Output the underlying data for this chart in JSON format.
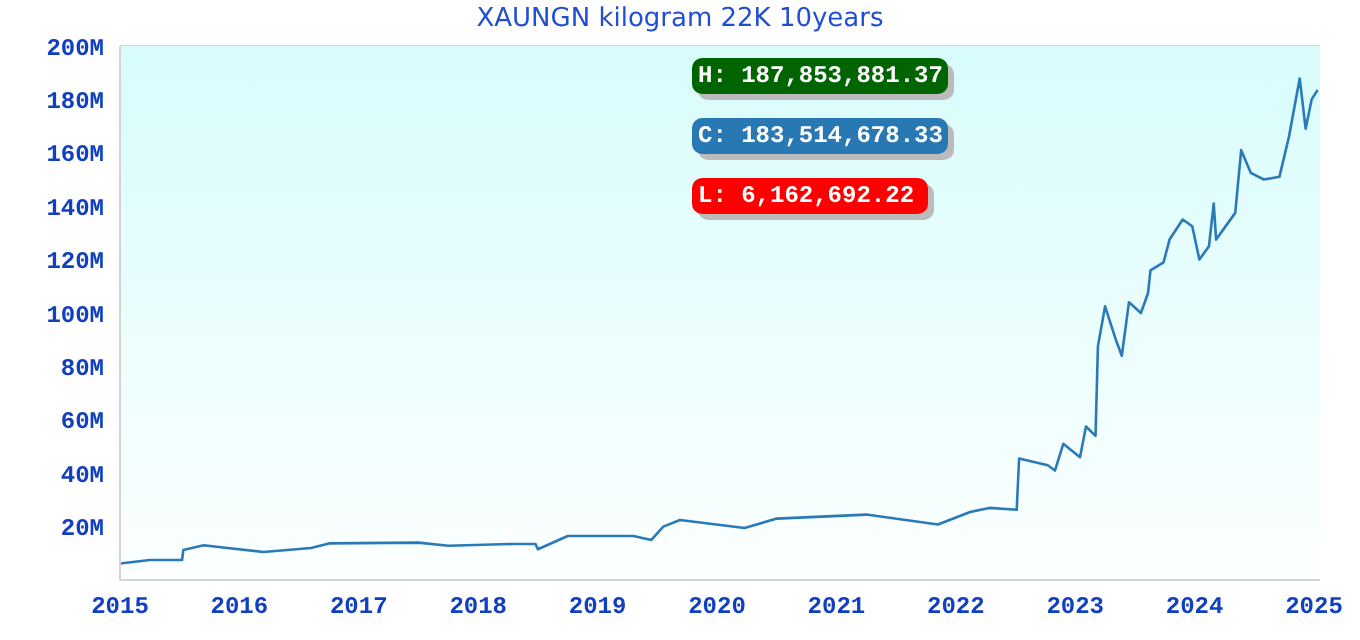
{
  "chart_data": {
    "type": "line",
    "title": "XAUNGN kilogram 22K 10years",
    "annotations": [
      "H: 187,853,881.37",
      "C: 183,514,678.33",
      "L: 6,162,692.22"
    ],
    "series": [
      {
        "color": "#2a7ab8",
        "x": [
          2015.0,
          2015.25,
          2015.52,
          2015.53,
          2015.7,
          2015.9,
          2016.2,
          2016.6,
          2016.75,
          2017.5,
          2017.75,
          2018.3,
          2018.48,
          2018.5,
          2018.75,
          2019.3,
          2019.45,
          2019.55,
          2019.69,
          2020.23,
          2020.5,
          2021.25,
          2021.85,
          2022.12,
          2022.28,
          2022.51,
          2022.53,
          2022.77,
          2022.83,
          2022.9,
          2023.04,
          2023.09,
          2023.17,
          2023.19,
          2023.25,
          2023.34,
          2023.39,
          2023.45,
          2023.55,
          2023.61,
          2023.63,
          2023.74,
          2023.79,
          2023.9,
          2023.98,
          2024.04,
          2024.12,
          2024.16,
          2024.18,
          2024.34,
          2024.39,
          2024.47,
          2024.58,
          2024.71,
          2024.79,
          2024.88,
          2024.93,
          2024.98,
          2025.03
        ],
        "values": [
          6200000,
          7500000,
          7500000,
          11200000,
          13000000,
          12000000,
          10500000,
          12000000,
          13700000,
          14000000,
          12800000,
          13500000,
          13500000,
          11500000,
          16500000,
          16500000,
          15000000,
          20000000,
          22500000,
          19500000,
          23000000,
          24500000,
          20800000,
          25500000,
          27000000,
          26300000,
          45500000,
          43000000,
          41000000,
          51000000,
          46000000,
          57500000,
          54000000,
          87500000,
          102500000,
          90000000,
          84000000,
          104000000,
          100000000,
          107500000,
          116000000,
          119000000,
          127500000,
          135000000,
          132500000,
          120000000,
          125000000,
          141000000,
          127500000,
          137500000,
          161000000,
          152500000,
          150000000,
          151000000,
          166000000,
          187800000,
          169000000,
          180000000,
          183500000
        ]
      }
    ],
    "xlim": [
      2015,
      2025.05
    ],
    "xticks": [
      2015,
      2016,
      2017,
      2018,
      2019,
      2020,
      2021,
      2022,
      2023,
      2024,
      2025
    ],
    "ylim": [
      0,
      200000000
    ],
    "yticks": [
      {
        "value": 20000000,
        "label": "20M"
      },
      {
        "value": 40000000,
        "label": "40M"
      },
      {
        "value": 60000000,
        "label": "60M"
      },
      {
        "value": 80000000,
        "label": "80M"
      },
      {
        "value": 100000000,
        "label": "100M"
      },
      {
        "value": 120000000,
        "label": "120M"
      },
      {
        "value": 140000000,
        "label": "140M"
      },
      {
        "value": 160000000,
        "label": "160M"
      },
      {
        "value": 180000000,
        "label": "180M"
      },
      {
        "value": 200000000,
        "label": "200M"
      }
    ],
    "grid": "y",
    "legend": false,
    "marker": "none",
    "line_style": "solid"
  }
}
